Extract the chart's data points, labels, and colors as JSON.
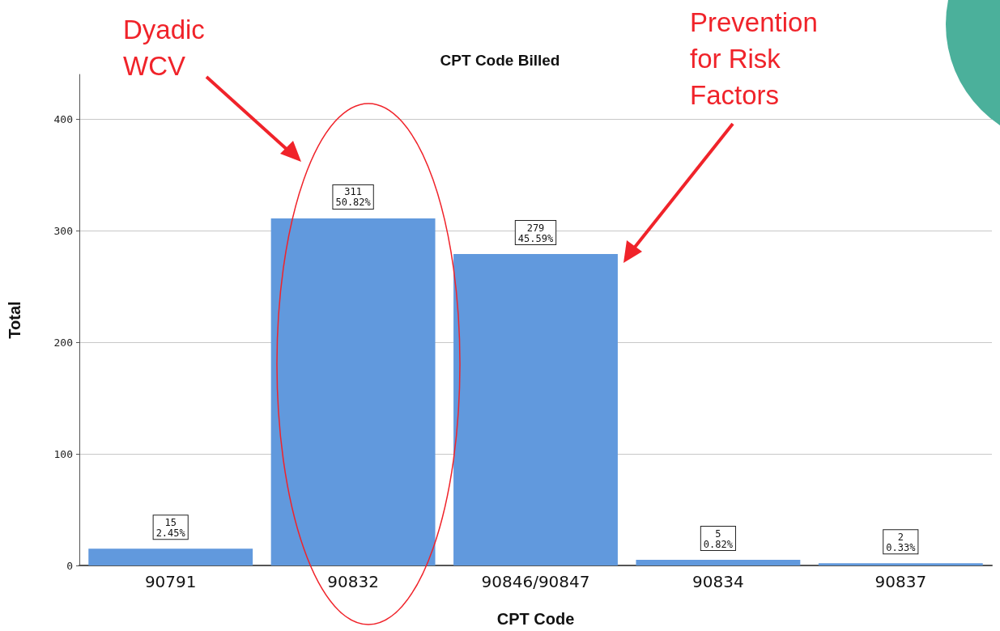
{
  "chart_data": {
    "type": "bar",
    "title": "CPT Code Billed",
    "xlabel": "CPT Code",
    "ylabel": "Total",
    "categories": [
      "90791",
      "90832",
      "90846/90847",
      "90834",
      "90837"
    ],
    "values": [
      15,
      311,
      279,
      5,
      2
    ],
    "color": "#6199dd",
    "value_labels": [
      "15\n2.45%",
      "311\n50.82%",
      "279\n45.59%",
      "5\n0.82%",
      "2\n0.33%"
    ],
    "ylim": [
      0,
      440
    ],
    "yticks": [
      0,
      100,
      200,
      300,
      400
    ],
    "grid": "y",
    "annotations": [
      "Dyadic WCV",
      "Prevention for Risk Factors"
    ]
  }
}
